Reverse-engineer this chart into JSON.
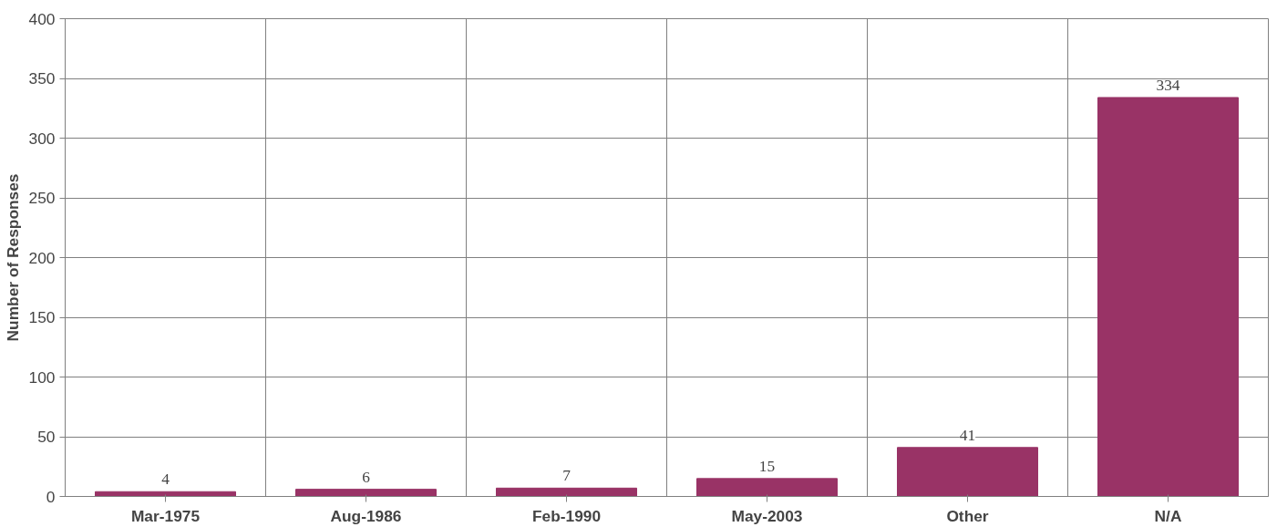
{
  "chart_data": {
    "type": "bar",
    "ylabel": "Number of Responses",
    "categories": [
      "Mar-1975",
      "Aug-1986",
      "Feb-1990",
      "May-2003",
      "Other",
      "N/A"
    ],
    "values": [
      4,
      6,
      7,
      15,
      41,
      334
    ],
    "color": "#993366",
    "ylim": [
      0,
      400
    ],
    "yticks": [
      0,
      50,
      100,
      150,
      200,
      250,
      300,
      350,
      400
    ],
    "grid": true,
    "data_labels": true
  }
}
